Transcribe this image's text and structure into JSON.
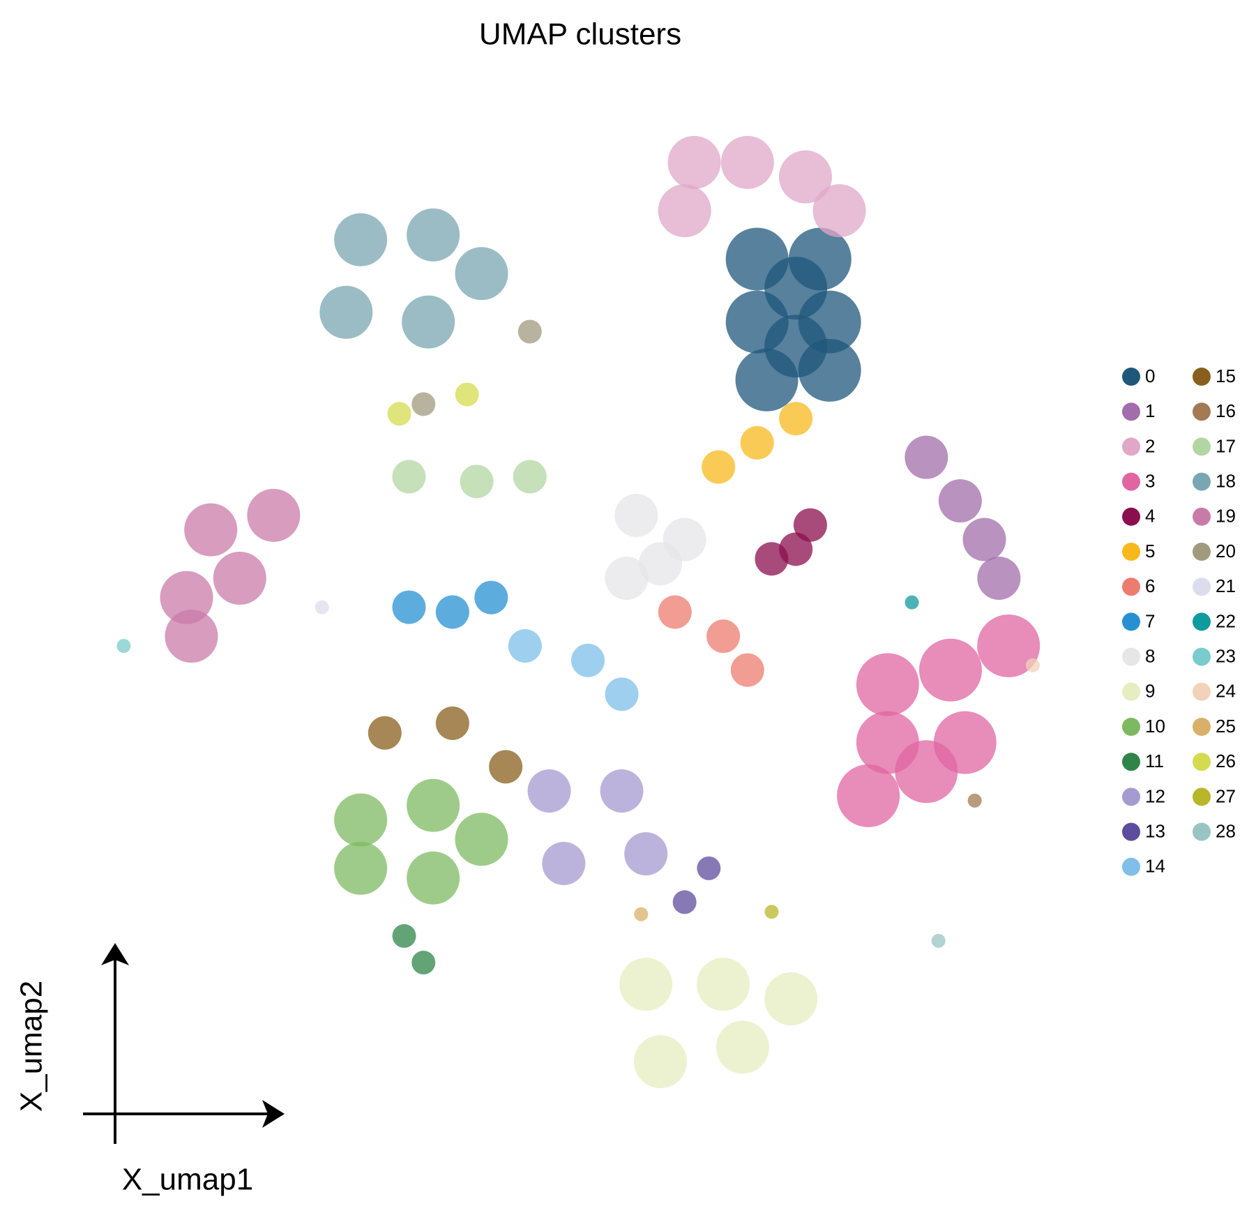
{
  "chart_data": {
    "type": "scatter",
    "title": "UMAP clusters",
    "xlabel": "X_umap1",
    "ylabel": "X_umap2",
    "xlim": [
      0,
      21
    ],
    "ylim": [
      0,
      22
    ],
    "series": [
      {
        "name": "0",
        "color": "#1f577b",
        "x": [
          14.0,
          15.3,
          14.0,
          15.5,
          14.2,
          15.5,
          14.8,
          14.8
        ],
        "y": [
          18.3,
          18.3,
          17.0,
          17.0,
          15.8,
          16.0,
          17.7,
          16.5
        ]
      },
      {
        "name": "1",
        "color": "#a26dab",
        "x": [
          17.5,
          18.2,
          18.7,
          19.0
        ],
        "y": [
          14.2,
          13.3,
          12.5,
          11.7
        ]
      },
      {
        "name": "2",
        "color": "#e0a7c8",
        "x": [
          12.7,
          13.8,
          15.0,
          12.5,
          15.7
        ],
        "y": [
          20.3,
          20.3,
          20.0,
          19.3,
          19.3
        ]
      },
      {
        "name": "3",
        "color": "#e066a2",
        "x": [
          16.7,
          18.0,
          19.2,
          16.7,
          18.3,
          16.3,
          17.5
        ],
        "y": [
          9.5,
          9.8,
          10.3,
          8.3,
          8.3,
          7.2,
          7.7
        ]
      },
      {
        "name": "4",
        "color": "#8b0f4e",
        "x": [
          14.3,
          14.8,
          15.1
        ],
        "y": [
          12.1,
          12.3,
          12.8
        ]
      },
      {
        "name": "5",
        "color": "#f7b81c",
        "x": [
          13.2,
          14.0,
          14.8
        ],
        "y": [
          14.0,
          14.5,
          15.0
        ]
      },
      {
        "name": "6",
        "color": "#ec7c70",
        "x": [
          12.3,
          13.3,
          13.8
        ],
        "y": [
          11.0,
          10.5,
          9.8
        ]
      },
      {
        "name": "7",
        "color": "#2790d3",
        "x": [
          6.8,
          7.7,
          8.5
        ],
        "y": [
          11.1,
          11.0,
          11.3
        ]
      },
      {
        "name": "8",
        "color": "#e6e6e9",
        "x": [
          11.5,
          12.0,
          11.3,
          12.5
        ],
        "y": [
          13.0,
          12.0,
          11.7,
          12.5
        ]
      },
      {
        "name": "9",
        "color": "#e6edc0",
        "x": [
          11.7,
          13.3,
          14.7,
          12.0,
          13.7
        ],
        "y": [
          3.3,
          3.3,
          3.0,
          1.7,
          2.0
        ]
      },
      {
        "name": "10",
        "color": "#7db961",
        "x": [
          5.8,
          7.3,
          8.3,
          5.8,
          7.3
        ],
        "y": [
          6.7,
          7.0,
          6.3,
          5.7,
          5.5
        ]
      },
      {
        "name": "11",
        "color": "#2f8549",
        "x": [
          6.7,
          7.1
        ],
        "y": [
          4.3,
          3.75
        ]
      },
      {
        "name": "12",
        "color": "#a69ad0",
        "x": [
          9.7,
          11.2,
          10.0,
          11.7
        ],
        "y": [
          7.3,
          7.3,
          5.8,
          6.0
        ]
      },
      {
        "name": "13",
        "color": "#5e4c9c",
        "x": [
          12.5,
          13.0
        ],
        "y": [
          5.0,
          5.7
        ]
      },
      {
        "name": "14",
        "color": "#7fbfea",
        "x": [
          9.2,
          10.5,
          11.2
        ],
        "y": [
          10.3,
          10.0,
          9.3
        ]
      },
      {
        "name": "15",
        "color": "#885f1c",
        "x": [
          6.3,
          7.7,
          8.8
        ],
        "y": [
          8.5,
          8.7,
          7.8
        ]
      },
      {
        "name": "16",
        "color": "#a27a53",
        "x": [
          18.5
        ],
        "y": [
          7.1
        ]
      },
      {
        "name": "17",
        "color": "#b3d5a3",
        "x": [
          6.8,
          8.2,
          9.3
        ],
        "y": [
          13.8,
          13.7,
          13.8
        ]
      },
      {
        "name": "18",
        "color": "#7aa6b2",
        "x": [
          5.8,
          7.3,
          8.3,
          5.5,
          7.2
        ],
        "y": [
          18.7,
          18.8,
          18.0,
          17.2,
          17.0
        ]
      },
      {
        "name": "19",
        "color": "#c97ba8",
        "x": [
          2.7,
          4.0,
          2.2,
          3.3,
          2.3
        ],
        "y": [
          12.7,
          13.0,
          11.3,
          11.7,
          10.5
        ]
      },
      {
        "name": "20",
        "color": "#a09a7f",
        "x": [
          9.3,
          7.1
        ],
        "y": [
          16.8,
          15.3
        ]
      },
      {
        "name": "21",
        "color": "#dddcec",
        "x": [
          5.0
        ],
        "y": [
          11.1
        ]
      },
      {
        "name": "22",
        "color": "#0f9aa0",
        "x": [
          17.2
        ],
        "y": [
          11.2
        ]
      },
      {
        "name": "23",
        "color": "#7acbcc",
        "x": [
          0.9
        ],
        "y": [
          10.3
        ]
      },
      {
        "name": "24",
        "color": "#f2d2b8",
        "x": [
          19.7
        ],
        "y": [
          9.9
        ]
      },
      {
        "name": "25",
        "color": "#d8b06a",
        "x": [
          11.6
        ],
        "y": [
          4.75
        ]
      },
      {
        "name": "26",
        "color": "#d4db4f",
        "x": [
          8.0,
          6.6
        ],
        "y": [
          15.5,
          15.1
        ]
      },
      {
        "name": "27",
        "color": "#b8b629",
        "x": [
          14.3
        ],
        "y": [
          4.8
        ]
      },
      {
        "name": "28",
        "color": "#99c4c4",
        "x": [
          17.75
        ],
        "y": [
          4.2
        ]
      }
    ]
  }
}
